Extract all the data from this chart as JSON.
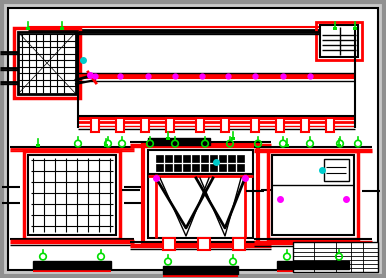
{
  "bg_color": "#c8c8c8",
  "red": "#ff0000",
  "green": "#00dd00",
  "magenta": "#ff00ff",
  "cyan": "#00cccc",
  "black": "#000000",
  "white": "#ffffff",
  "fig_w": 3.86,
  "fig_h": 2.78,
  "dpi": 100
}
